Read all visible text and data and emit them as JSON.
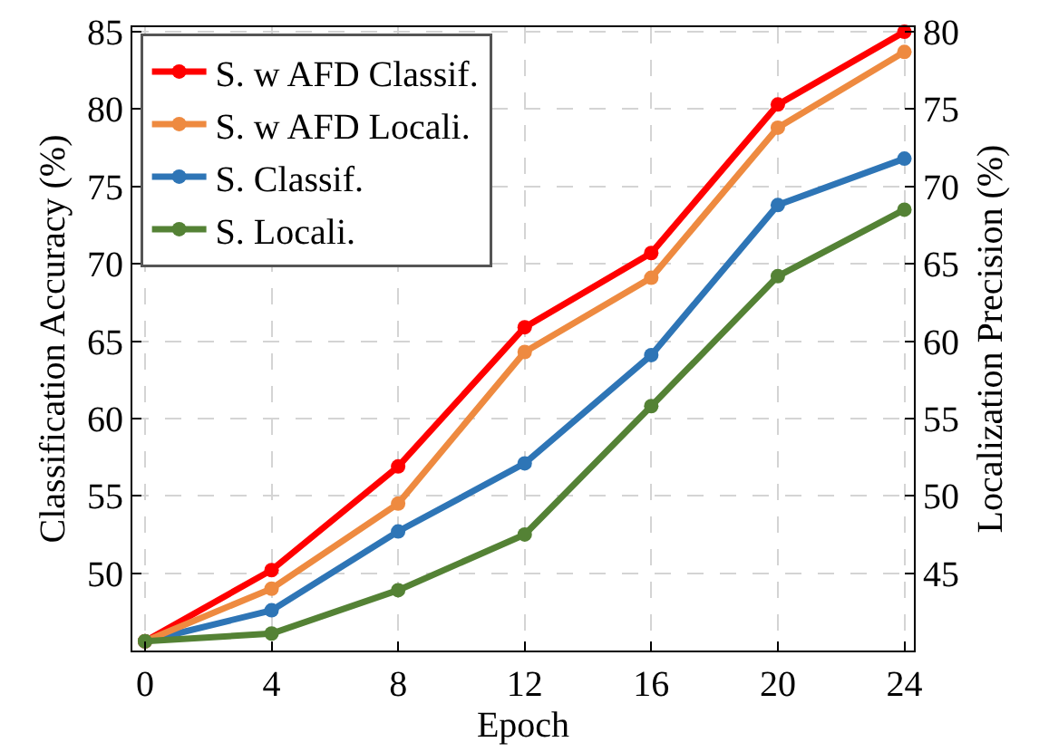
{
  "chart_data": {
    "type": "line",
    "xlabel": "Epoch",
    "ylabel": "Classification Accuracy (%)",
    "y2label": "Localization Precision (%)",
    "x": [
      0,
      4,
      8,
      12,
      16,
      20,
      24
    ],
    "xlim": [
      -0.4,
      24.3
    ],
    "xticks": [
      0,
      4,
      8,
      12,
      16,
      20,
      24
    ],
    "ylim": [
      45,
      85.3
    ],
    "yticks": [
      50,
      55,
      60,
      65,
      70,
      75,
      80,
      85
    ],
    "y2lim": [
      40,
      80.3
    ],
    "y2ticks": [
      45,
      50,
      55,
      60,
      65,
      70,
      75,
      80
    ],
    "series": [
      {
        "name": "S. w AFD Classif.",
        "color": "#ff0000",
        "values": [
          45.6,
          50.2,
          56.9,
          65.9,
          70.7,
          80.3,
          85.0
        ]
      },
      {
        "name": "S. w AFD Locali.",
        "color": "#ee8a40",
        "axis": "y2",
        "values": [
          40.6,
          44.0,
          49.5,
          59.3,
          64.1,
          73.8,
          78.7
        ]
      },
      {
        "name": "S. Classif.",
        "color": "#2e75b6",
        "values": [
          45.6,
          47.6,
          52.7,
          57.1,
          64.1,
          73.8,
          76.8
        ]
      },
      {
        "name": "S. Locali.",
        "color": "#548235",
        "axis": "y2",
        "values": [
          40.6,
          41.1,
          43.9,
          47.5,
          55.8,
          64.2,
          68.5
        ]
      }
    ],
    "grid": true,
    "legend": "top left",
    "marker": "circle",
    "line_style": "solid"
  }
}
